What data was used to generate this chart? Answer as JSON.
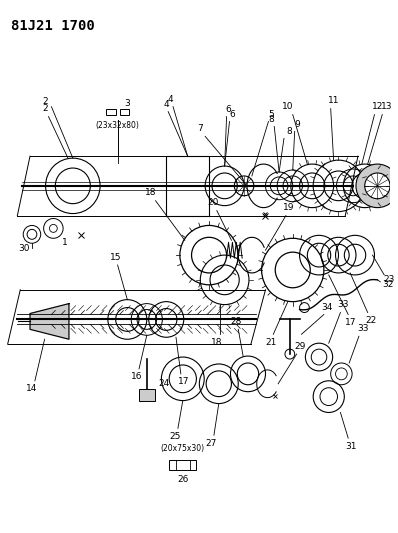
{
  "title": "81J21 1700",
  "bg_color": "#ffffff",
  "line_color": "#000000",
  "title_fontsize": 10,
  "anno_fontsize": 6.5
}
